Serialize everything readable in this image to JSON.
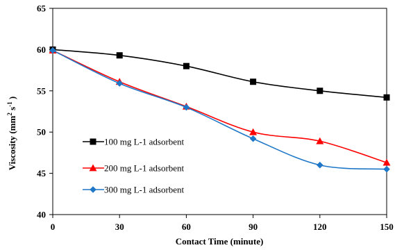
{
  "chart_data": {
    "type": "line",
    "x": [
      0,
      30,
      60,
      90,
      120,
      150
    ],
    "xlabel": "Contact Time (minute)",
    "ylabel_main": "Viscosity (mm",
    "ylabel_sup1": "2",
    "ylabel_mid": " s",
    "ylabel_sup2": "-1",
    "ylabel_end": " )",
    "xlim": [
      0,
      150
    ],
    "ylim": [
      40,
      65
    ],
    "x_ticks": [
      "0",
      "30",
      "60",
      "90",
      "120",
      "150"
    ],
    "y_ticks": [
      "40",
      "45",
      "50",
      "55",
      "60",
      "65"
    ],
    "grid": false,
    "legend_position": "lower-left",
    "series": [
      {
        "name": "100 mg L-1 adsorbent",
        "color": "#000000",
        "marker": "square",
        "values": [
          60.0,
          59.3,
          58.0,
          56.1,
          55.0,
          54.2
        ]
      },
      {
        "name": "200 mg L-1 adsorbent",
        "color": "#ff0000",
        "marker": "triangle",
        "values": [
          59.9,
          56.1,
          53.1,
          50.0,
          48.9,
          46.3
        ]
      },
      {
        "name": "300 mg L-1 adsorbent",
        "color": "#1f77c8",
        "marker": "diamond",
        "values": [
          59.9,
          55.9,
          53.0,
          49.2,
          46.0,
          45.5
        ]
      }
    ]
  }
}
